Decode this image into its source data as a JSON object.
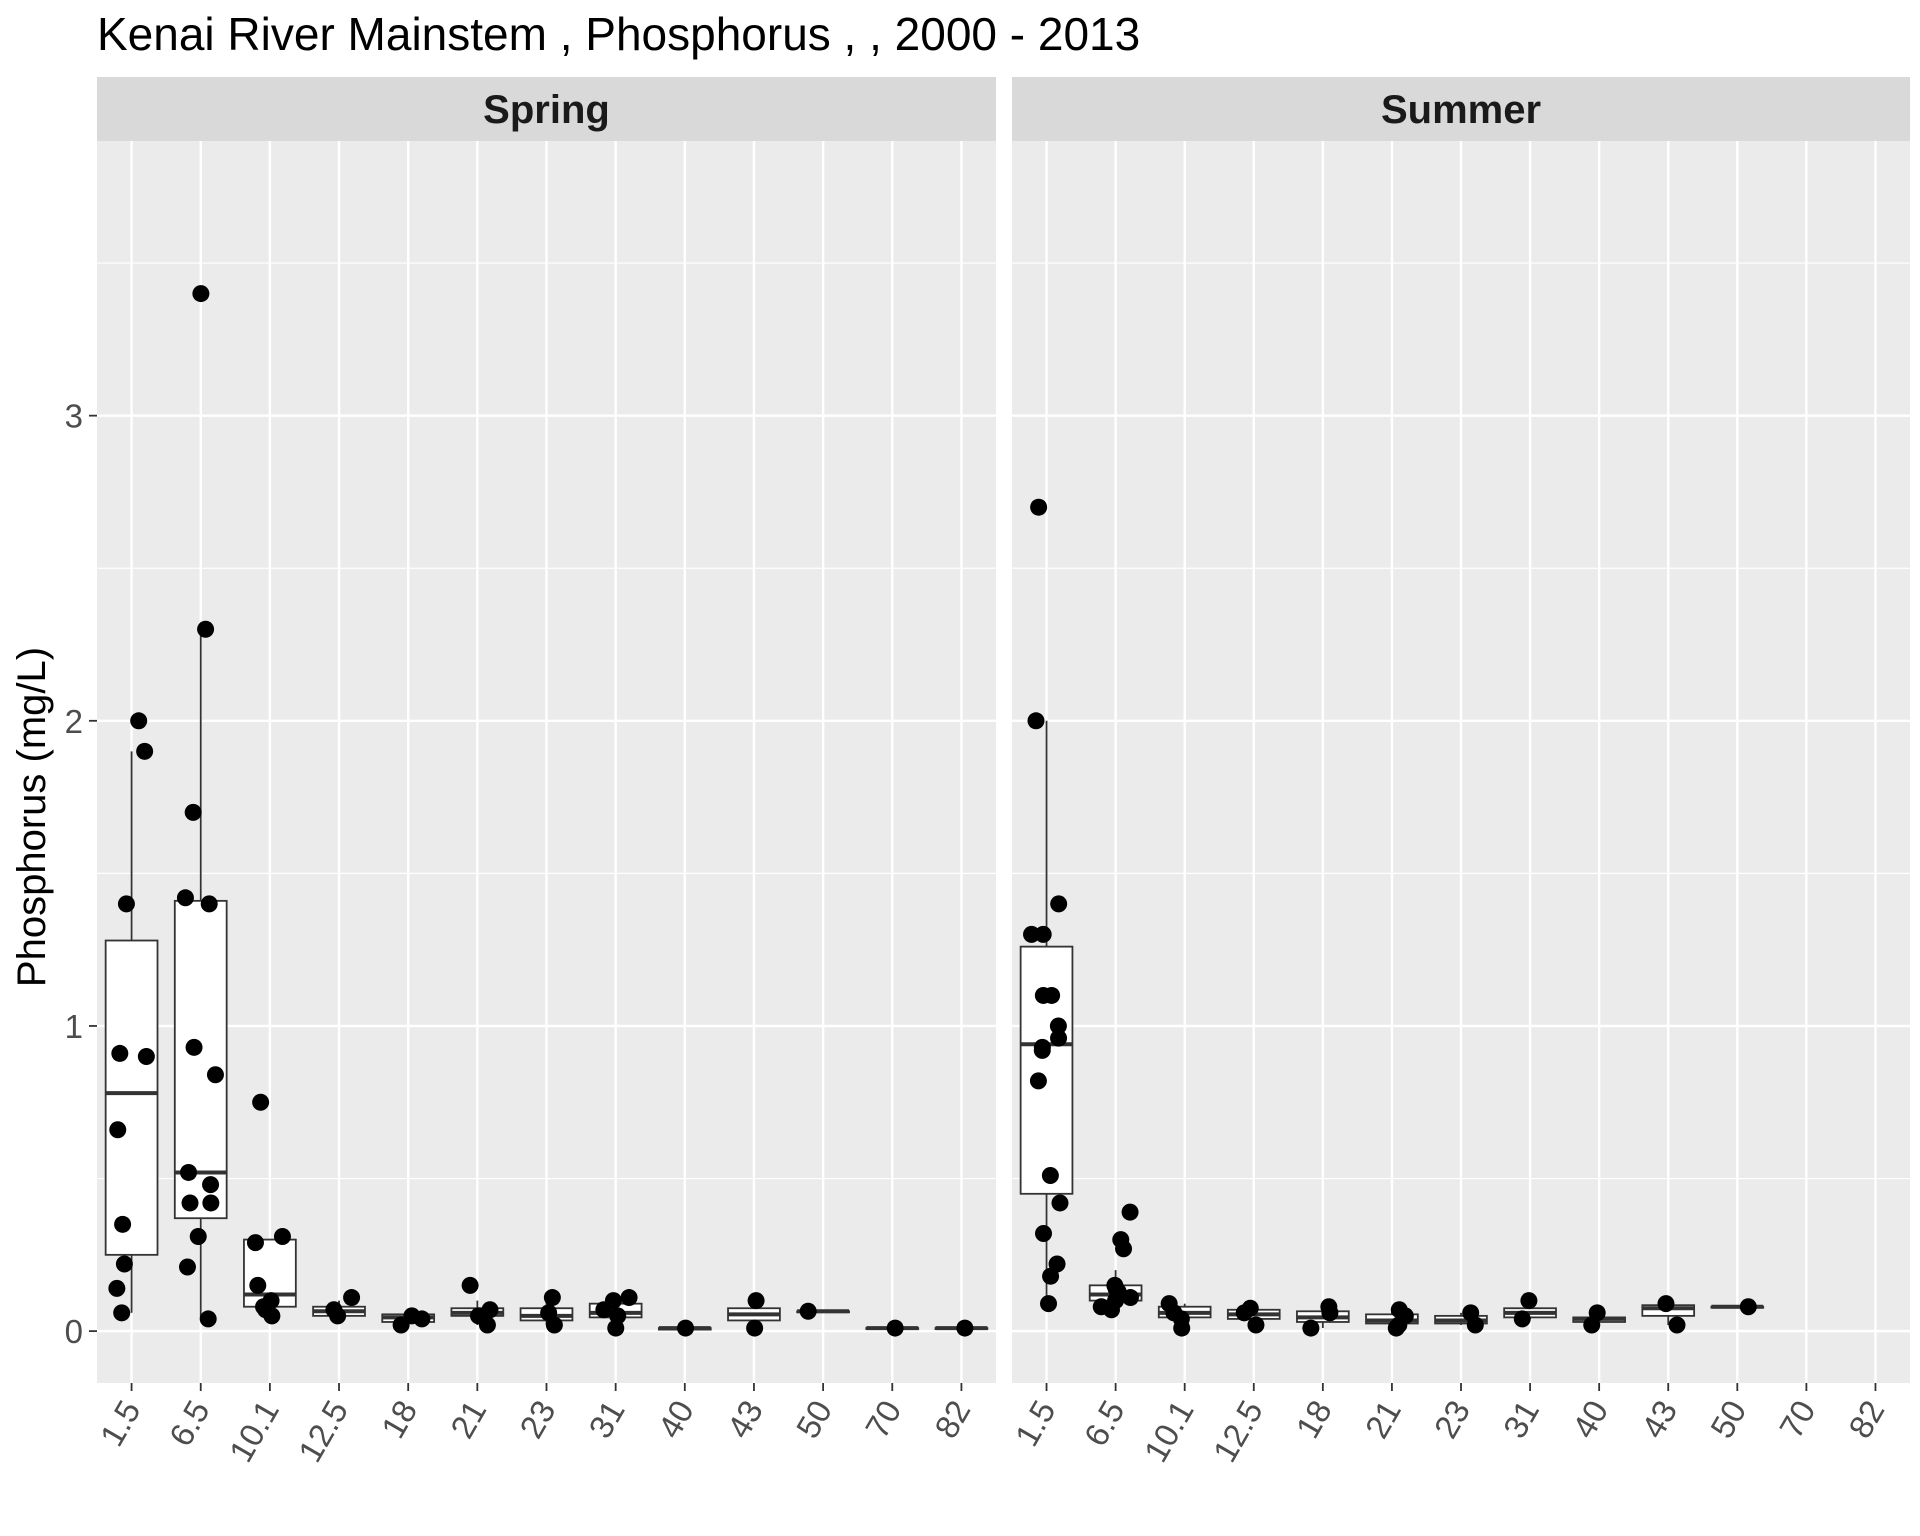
{
  "chart_data": {
    "type": "boxplot",
    "title": "Kenai River Mainstem , Phosphorus ,  , 2000 - 2013",
    "ylabel": "Phosphorus (mg/L)",
    "xlabel": "",
    "ylim": [
      -0.17,
      3.9
    ],
    "yticks": [
      0,
      1,
      2,
      3
    ],
    "ytick_labels": [
      "0",
      "1",
      "2",
      "3"
    ],
    "categories": [
      "1.5",
      "6.5",
      "10.1",
      "12.5",
      "18",
      "21",
      "23",
      "31",
      "40",
      "43",
      "50",
      "70",
      "82"
    ],
    "panels": [
      {
        "name": "Spring",
        "boxes": [
          {
            "category": "1.5",
            "q1": 0.25,
            "median": 0.78,
            "q3": 1.28,
            "whisker_low": 0.06,
            "whisker_high": 1.9,
            "points": [
              0.06,
              0.14,
              0.22,
              0.35,
              0.66,
              0.9,
              0.91,
              1.4,
              1.9,
              2.0
            ]
          },
          {
            "category": "6.5",
            "q1": 0.37,
            "median": 0.52,
            "q3": 1.41,
            "whisker_low": 0.04,
            "whisker_high": 2.3,
            "points": [
              0.04,
              0.21,
              0.31,
              0.42,
              0.42,
              0.48,
              0.52,
              0.84,
              0.93,
              1.4,
              1.42,
              1.7,
              2.3,
              3.4
            ]
          },
          {
            "category": "10.1",
            "q1": 0.08,
            "median": 0.12,
            "q3": 0.3,
            "whisker_low": 0.05,
            "whisker_high": 0.3,
            "points": [
              0.05,
              0.07,
              0.08,
              0.1,
              0.15,
              0.29,
              0.31,
              0.75
            ]
          },
          {
            "category": "12.5",
            "q1": 0.05,
            "median": 0.065,
            "q3": 0.08,
            "whisker_low": 0.04,
            "whisker_high": 0.1,
            "points": [
              0.05,
              0.07,
              0.11
            ]
          },
          {
            "category": "18",
            "q1": 0.03,
            "median": 0.045,
            "q3": 0.055,
            "whisker_low": 0.02,
            "whisker_high": 0.06,
            "points": [
              0.02,
              0.04,
              0.05
            ]
          },
          {
            "category": "21",
            "q1": 0.05,
            "median": 0.06,
            "q3": 0.075,
            "whisker_low": 0.02,
            "whisker_high": 0.1,
            "points": [
              0.02,
              0.05,
              0.07,
              0.15
            ]
          },
          {
            "category": "23",
            "q1": 0.035,
            "median": 0.05,
            "q3": 0.075,
            "whisker_low": 0.02,
            "whisker_high": 0.11,
            "points": [
              0.02,
              0.06,
              0.11
            ]
          },
          {
            "category": "31",
            "q1": 0.045,
            "median": 0.06,
            "q3": 0.09,
            "whisker_low": 0.01,
            "whisker_high": 0.11,
            "points": [
              0.01,
              0.05,
              0.07,
              0.1,
              0.11
            ]
          },
          {
            "category": "40",
            "q1": 0.005,
            "median": 0.01,
            "q3": 0.01,
            "whisker_low": 0.005,
            "whisker_high": 0.01,
            "points": [
              0.01
            ]
          },
          {
            "category": "43",
            "q1": 0.035,
            "median": 0.055,
            "q3": 0.075,
            "whisker_low": 0.01,
            "whisker_high": 0.1,
            "points": [
              0.01,
              0.1
            ]
          },
          {
            "category": "50",
            "q1": 0.065,
            "median": 0.065,
            "q3": 0.065,
            "whisker_low": 0.065,
            "whisker_high": 0.065,
            "points": [
              0.065
            ]
          },
          {
            "category": "70",
            "q1": 0.01,
            "median": 0.01,
            "q3": 0.01,
            "whisker_low": 0.01,
            "whisker_high": 0.01,
            "points": [
              0.01
            ]
          },
          {
            "category": "82",
            "q1": 0.01,
            "median": 0.01,
            "q3": 0.01,
            "whisker_low": 0.01,
            "whisker_high": 0.01,
            "points": [
              0.01
            ]
          }
        ]
      },
      {
        "name": "Summer",
        "boxes": [
          {
            "category": "1.5",
            "q1": 0.45,
            "median": 0.94,
            "q3": 1.26,
            "whisker_low": 0.09,
            "whisker_high": 2.0,
            "points": [
              0.09,
              0.18,
              0.22,
              0.32,
              0.42,
              0.51,
              0.82,
              0.92,
              0.93,
              0.96,
              1.0,
              1.1,
              1.1,
              1.3,
              1.3,
              1.4,
              2.0,
              2.7
            ]
          },
          {
            "category": "6.5",
            "q1": 0.1,
            "median": 0.12,
            "q3": 0.15,
            "whisker_low": 0.07,
            "whisker_high": 0.2,
            "points": [
              0.07,
              0.08,
              0.1,
              0.11,
              0.12,
              0.13,
              0.14,
              0.15,
              0.27,
              0.3,
              0.39
            ]
          },
          {
            "category": "10.1",
            "q1": 0.045,
            "median": 0.06,
            "q3": 0.08,
            "whisker_low": 0.01,
            "whisker_high": 0.09,
            "points": [
              0.01,
              0.04,
              0.06,
              0.09
            ]
          },
          {
            "category": "12.5",
            "q1": 0.04,
            "median": 0.055,
            "q3": 0.07,
            "whisker_low": 0.02,
            "whisker_high": 0.08,
            "points": [
              0.02,
              0.06,
              0.075
            ]
          },
          {
            "category": "18",
            "q1": 0.03,
            "median": 0.045,
            "q3": 0.065,
            "whisker_low": 0.01,
            "whisker_high": 0.08,
            "points": [
              0.01,
              0.06,
              0.08
            ]
          },
          {
            "category": "21",
            "q1": 0.025,
            "median": 0.035,
            "q3": 0.055,
            "whisker_low": 0.01,
            "whisker_high": 0.07,
            "points": [
              0.01,
              0.02,
              0.05,
              0.07
            ]
          },
          {
            "category": "23",
            "q1": 0.025,
            "median": 0.035,
            "q3": 0.05,
            "whisker_low": 0.02,
            "whisker_high": 0.06,
            "points": [
              0.02,
              0.06
            ]
          },
          {
            "category": "31",
            "q1": 0.045,
            "median": 0.06,
            "q3": 0.075,
            "whisker_low": 0.04,
            "whisker_high": 0.1,
            "points": [
              0.04,
              0.1
            ]
          },
          {
            "category": "40",
            "q1": 0.03,
            "median": 0.04,
            "q3": 0.045,
            "whisker_low": 0.02,
            "whisker_high": 0.06,
            "points": [
              0.02,
              0.06
            ]
          },
          {
            "category": "43",
            "q1": 0.05,
            "median": 0.075,
            "q3": 0.085,
            "whisker_low": 0.02,
            "whisker_high": 0.09,
            "points": [
              0.02,
              0.09
            ]
          },
          {
            "category": "50",
            "q1": 0.08,
            "median": 0.08,
            "q3": 0.08,
            "whisker_low": 0.08,
            "whisker_high": 0.08,
            "points": [
              0.08
            ]
          }
        ]
      }
    ]
  },
  "colors": {
    "panel_background": "#ebebeb",
    "grid": "#ffffff",
    "strip_background": "#d9d9d9",
    "point": "#000000",
    "box_fill": "#ffffff",
    "box_stroke": "#333333",
    "tick_text": "#4d4d4d"
  }
}
